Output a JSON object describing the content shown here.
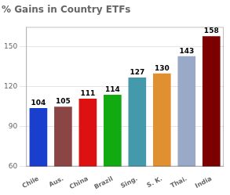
{
  "chart_data": {
    "type": "bar",
    "title": "% Gains in Country ETFs",
    "categories": [
      "Chile",
      "Aus.",
      "China",
      "Brazil",
      "Sing.",
      "S. K.",
      "Thai.",
      "India"
    ],
    "values": [
      104,
      105,
      111,
      114,
      127,
      130,
      143,
      158
    ],
    "colors": [
      "#1a3fcc",
      "#8b4545",
      "#dd1111",
      "#11aa11",
      "#4499aa",
      "#e09030",
      "#99aac8",
      "#7b0000"
    ],
    "ylim": [
      60,
      165
    ],
    "yticks": [
      60,
      90,
      120,
      150
    ],
    "grid": true,
    "data_labels": true
  }
}
